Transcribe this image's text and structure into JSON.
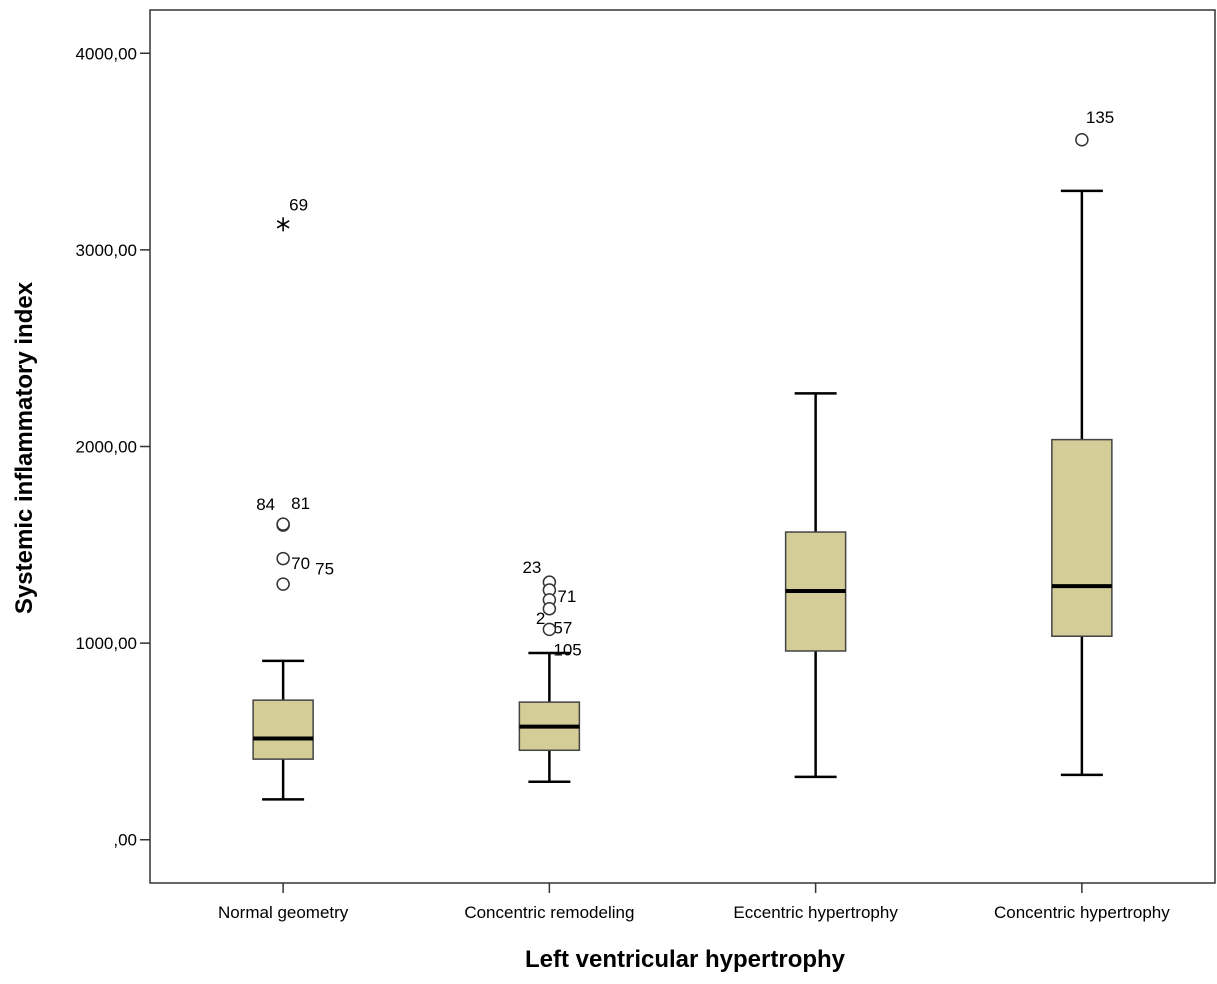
{
  "chart_data": {
    "type": "box",
    "xlabel": "Left ventricular hypertrophy",
    "ylabel": "Systemic inflammatory index",
    "ylim": [
      -220,
      4220
    ],
    "yticks": [
      0,
      1000,
      2000,
      3000,
      4000
    ],
    "ytick_labels": [
      ",00",
      "1000,00",
      "2000,00",
      "3000,00",
      "4000,00"
    ],
    "grid": false,
    "box_color": "#d4cd98",
    "categories": [
      "Normal geometry",
      "Concentric remodeling",
      "Eccentric hypertrophy",
      "Concentric hypertrophy"
    ],
    "boxes": [
      {
        "category": "Normal geometry",
        "whisker_low": 205,
        "q1": 410,
        "median": 515,
        "q3": 710,
        "whisker_high": 910
      },
      {
        "category": "Concentric remodeling",
        "whisker_low": 295,
        "q1": 455,
        "median": 575,
        "q3": 700,
        "whisker_high": 950
      },
      {
        "category": "Eccentric hypertrophy",
        "whisker_low": 320,
        "q1": 960,
        "median": 1265,
        "q3": 1565,
        "whisker_high": 2270
      },
      {
        "category": "Concentric hypertrophy",
        "whisker_low": 330,
        "q1": 1035,
        "median": 1290,
        "q3": 2035,
        "whisker_high": 3300
      }
    ],
    "outliers": [
      {
        "category": 0,
        "value": 3130,
        "marker": "star",
        "label": "69"
      },
      {
        "category": 0,
        "value": 1600,
        "marker": "circle",
        "label": "84"
      },
      {
        "category": 0,
        "value": 1605,
        "marker": "circle",
        "label": "81"
      },
      {
        "category": 0,
        "value": 1430,
        "marker": "circle",
        "label": "75"
      },
      {
        "category": 0,
        "value": 1300,
        "marker": "circle",
        "label": "70"
      },
      {
        "category": 1,
        "value": 1310,
        "marker": "circle",
        "label": "23"
      },
      {
        "category": 1,
        "value": 1270,
        "marker": "circle",
        "label": "71"
      },
      {
        "category": 1,
        "value": 1220,
        "marker": "circle",
        "label": "2"
      },
      {
        "category": 1,
        "value": 1175,
        "marker": "circle",
        "label": "57"
      },
      {
        "category": 1,
        "value": 1070,
        "marker": "circle",
        "label": "105"
      },
      {
        "category": 3,
        "value": 3560,
        "marker": "circle",
        "label": "135"
      }
    ]
  }
}
